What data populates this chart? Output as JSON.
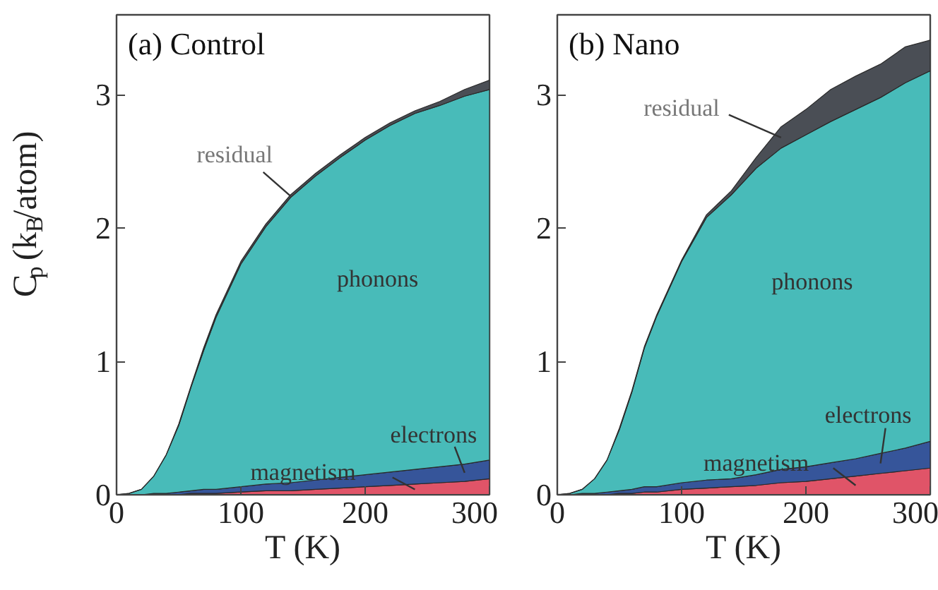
{
  "chart_data": [
    {
      "type": "area",
      "stacked": true,
      "title": "(a) Control",
      "xlabel": "T (K)",
      "ylabel": "C$_{p}$ (k$_{B}$/atom)",
      "xlim": [
        0,
        300
      ],
      "ylim": [
        0,
        3.6
      ],
      "xticks": [
        0,
        100,
        200,
        300
      ],
      "yticks": [
        0,
        1,
        2,
        3
      ],
      "x": [
        0,
        10,
        20,
        30,
        40,
        50,
        60,
        70,
        80,
        100,
        120,
        140,
        160,
        180,
        200,
        220,
        240,
        260,
        280,
        300
      ],
      "series": [
        {
          "name": "magnetism",
          "color": "#e05468",
          "values": [
            0,
            0,
            0,
            0,
            0,
            0,
            0.01,
            0.01,
            0.01,
            0.02,
            0.03,
            0.03,
            0.04,
            0.05,
            0.06,
            0.07,
            0.08,
            0.09,
            0.1,
            0.12
          ]
        },
        {
          "name": "electrons",
          "color": "#36559a",
          "values": [
            0,
            0,
            0,
            0.01,
            0.01,
            0.02,
            0.02,
            0.03,
            0.03,
            0.04,
            0.05,
            0.06,
            0.07,
            0.08,
            0.09,
            0.1,
            0.11,
            0.12,
            0.13,
            0.14
          ]
        },
        {
          "name": "phonons",
          "color": "#48bbb9",
          "values": [
            0,
            0.01,
            0.04,
            0.13,
            0.29,
            0.5,
            0.78,
            1.04,
            1.29,
            1.67,
            1.93,
            2.14,
            2.28,
            2.4,
            2.51,
            2.6,
            2.67,
            2.71,
            2.76,
            2.78
          ]
        },
        {
          "name": "residual",
          "color": "#4a4e55",
          "values": [
            0,
            0,
            0,
            0,
            0,
            0.01,
            0.01,
            0.02,
            0.02,
            0.02,
            0.02,
            0.02,
            0.02,
            0.02,
            0.02,
            0.02,
            0.02,
            0.03,
            0.05,
            0.07
          ]
        }
      ]
    },
    {
      "type": "area",
      "stacked": true,
      "title": "(b) Nano",
      "xlabel": "T (K)",
      "xlim": [
        0,
        300
      ],
      "ylim": [
        0,
        3.6
      ],
      "xticks": [
        0,
        100,
        200,
        300
      ],
      "yticks": [
        0,
        1,
        2,
        3
      ],
      "x": [
        0,
        10,
        20,
        30,
        40,
        50,
        60,
        70,
        80,
        100,
        120,
        140,
        160,
        180,
        200,
        220,
        240,
        260,
        280,
        300
      ],
      "series": [
        {
          "name": "magnetism",
          "color": "#e05468",
          "values": [
            0,
            0,
            0,
            0,
            0,
            0.01,
            0.01,
            0.02,
            0.02,
            0.04,
            0.05,
            0.06,
            0.07,
            0.09,
            0.1,
            0.12,
            0.14,
            0.16,
            0.18,
            0.2
          ]
        },
        {
          "name": "electrons",
          "color": "#36559a",
          "values": [
            0,
            0,
            0.01,
            0.01,
            0.02,
            0.02,
            0.03,
            0.04,
            0.04,
            0.05,
            0.06,
            0.06,
            0.08,
            0.1,
            0.11,
            0.12,
            0.13,
            0.15,
            0.17,
            0.2
          ]
        },
        {
          "name": "phonons",
          "color": "#48bbb9",
          "values": [
            0,
            0.01,
            0.03,
            0.11,
            0.24,
            0.46,
            0.73,
            1.04,
            1.28,
            1.66,
            1.97,
            2.13,
            2.3,
            2.41,
            2.49,
            2.56,
            2.62,
            2.67,
            2.74,
            2.78
          ]
        },
        {
          "name": "residual",
          "color": "#4a4e55",
          "values": [
            0,
            0,
            0,
            0,
            0,
            0.01,
            0.01,
            0.01,
            0.01,
            0.01,
            0.02,
            0.03,
            0.08,
            0.16,
            0.19,
            0.24,
            0.25,
            0.25,
            0.27,
            0.23
          ]
        }
      ]
    }
  ]
}
